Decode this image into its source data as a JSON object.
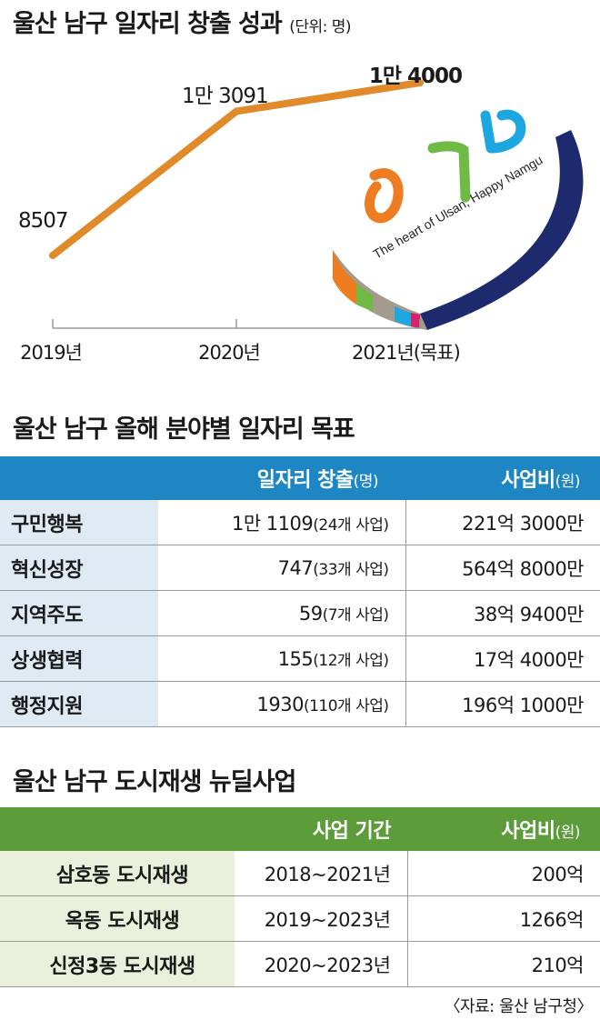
{
  "chart_title": "울산 남구 일자리 창출 성과",
  "chart_unit": "(단위: 명)",
  "chart_data": {
    "type": "line",
    "title": "울산 남구 일자리 창출 성과",
    "unit": "(단위: 명)",
    "categories": [
      "2019년",
      "2020년",
      "2021년(목표)"
    ],
    "values": [
      8507,
      13091,
      14000
    ],
    "value_labels": [
      "8507",
      "1만 3091",
      "1만 4000"
    ],
    "line_color": "#e08a2a",
    "ylim": [
      8507,
      14000
    ],
    "grid": false,
    "legend": "none"
  },
  "logo_text": "The heart of Ulsan, Happy Namgu",
  "table1": {
    "title": "울산 남구 올해 분야별 일자리 목표",
    "header_color": "#1f86c4",
    "headers": {
      "jobs": "일자리 창출",
      "jobs_unit": "(명)",
      "budget": "사업비",
      "budget_unit": "(원)"
    },
    "rows": [
      {
        "category": "구민행복",
        "jobs": "1만 1109",
        "projects": "(24개 사업)",
        "budget": "221억 3000만"
      },
      {
        "category": "혁신성장",
        "jobs": "747",
        "projects": "(33개 사업)",
        "budget": "564억 8000만"
      },
      {
        "category": "지역주도",
        "jobs": "59",
        "projects": "(7개 사업)",
        "budget": "38억 9400만"
      },
      {
        "category": "상생협력",
        "jobs": "155",
        "projects": "(12개 사업)",
        "budget": "17억 4000만"
      },
      {
        "category": "행정지원",
        "jobs": "1930",
        "projects": "(110개 사업)",
        "budget": "196억 1000만"
      }
    ]
  },
  "table2": {
    "title": "울산 남구 도시재생 뉴딜사업",
    "header_color": "#5c9c3a",
    "headers": {
      "period": "사업 기간",
      "budget": "사업비",
      "budget_unit": "(원)"
    },
    "rows": [
      {
        "name": "삼호동 도시재생",
        "period": "2018~2021년",
        "budget": "200억"
      },
      {
        "name": "옥동 도시재생",
        "period": "2019~2023년",
        "budget": "1266억"
      },
      {
        "name": "신정3동 도시재생",
        "period": "2020~2023년",
        "budget": "210억"
      }
    ]
  },
  "source": "〈자료: 울산 남구청〉"
}
